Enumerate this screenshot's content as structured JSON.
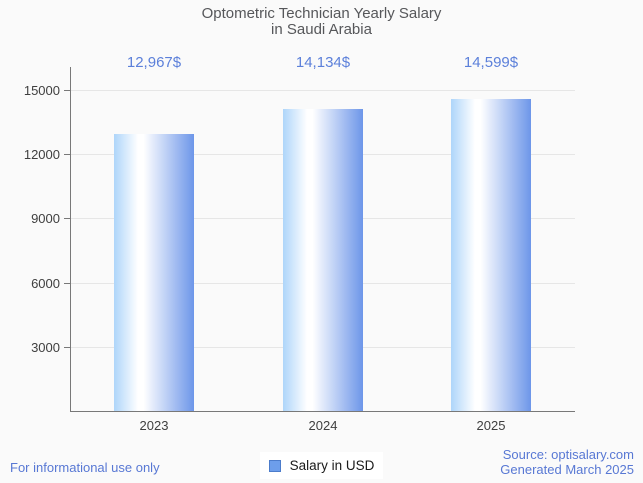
{
  "title": {
    "line1": "Optometric Technician Yearly Salary",
    "line2": "in Saudi Arabia"
  },
  "chart_data": {
    "type": "bar",
    "title": "Optometric Technician Yearly Salary in Saudi Arabia",
    "categories": [
      "2023",
      "2024",
      "2025"
    ],
    "series": [
      {
        "name": "Salary in USD",
        "values": [
          12967,
          14134,
          14599
        ]
      }
    ],
    "value_labels": [
      "12,967$",
      "14,134$",
      "14,599$"
    ],
    "xlabel": "",
    "ylabel": "",
    "ylim": [
      0,
      16100
    ],
    "yticks": [
      3000,
      6000,
      9000,
      12000,
      15000
    ],
    "grid": true,
    "legend_position": "bottom"
  },
  "legend": {
    "label": "Salary in USD"
  },
  "footer": {
    "left": "For informational use only",
    "source": "Source: optisalary.com",
    "generated": "Generated March 2025"
  },
  "colors": {
    "background": "#fafafa",
    "title_text": "#56575a",
    "axis_line": "#787878",
    "gridline": "#e6e6e6",
    "axis_label": "#3f3f3f",
    "annotation_text": "#5c80da",
    "footer_text": "#5878d4",
    "bar_gradient": [
      "#aed5fa",
      "#ffffff",
      "#6d96e9"
    ],
    "legend_swatch_fill": "#6d9eeb",
    "legend_swatch_border": "#4c7ccb",
    "legend_text": "#1a1a1a"
  }
}
